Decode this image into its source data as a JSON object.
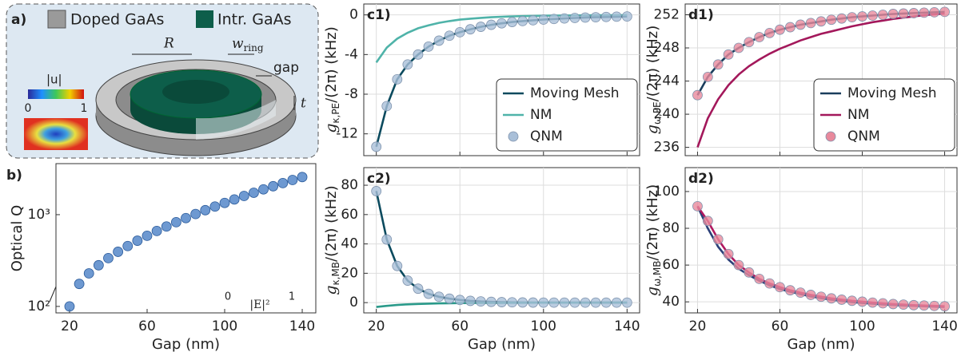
{
  "schematic": {
    "label": "a)",
    "legend": [
      "Doped GaAs",
      "Intr. GaAs"
    ],
    "R": "R",
    "w_ring": [
      "w",
      "ring"
    ],
    "gap": "gap",
    "t": "t",
    "colorbar_title": "|u|",
    "colorbar_ticks": [
      "0",
      "1"
    ]
  },
  "chart_data": [
    {
      "type": "scatter",
      "label": "b)",
      "ylabel": [
        "Optical Q"
      ],
      "xlabel": "Gap (nm)",
      "yscale": "log",
      "grid": false,
      "x": [
        20,
        25,
        30,
        35,
        40,
        45,
        50,
        55,
        60,
        65,
        70,
        75,
        80,
        85,
        90,
        95,
        100,
        105,
        110,
        115,
        120,
        125,
        130,
        135,
        140
      ],
      "series": [
        {
          "name": "Optical Q",
          "color": "#4a7fc6",
          "style": "markers",
          "values": [
            100,
            176,
            229,
            281,
            336,
            394,
            455,
            520,
            589,
            664,
            743,
            828,
            918,
            1016,
            1119,
            1227,
            1343,
            1466,
            1600,
            1734,
            1888,
            2042,
            2208,
            2388,
            2570
          ]
        }
      ],
      "xlim": [
        13,
        147
      ],
      "xticks": [
        20,
        60,
        100,
        140
      ],
      "ylim": [
        85,
        3600
      ],
      "yticks": [
        {
          "value": 100,
          "label": "10²"
        },
        {
          "value": 1000,
          "label": "10³"
        }
      ],
      "annotations": [
        "0",
        "1",
        "|E|²"
      ]
    },
    {
      "type": "line",
      "label": "c1)",
      "ylabel": [
        "g",
        "κ,PE",
        "/(2π) (kHz)"
      ],
      "grid": true,
      "xticklabels": false,
      "legend": "lower right",
      "x": [
        20,
        25,
        30,
        35,
        40,
        45,
        50,
        55,
        60,
        65,
        70,
        75,
        80,
        85,
        90,
        95,
        100,
        105,
        110,
        115,
        120,
        125,
        130,
        135,
        140
      ],
      "series": [
        {
          "name": "Moving Mesh",
          "color": "#0b4a5e",
          "style": "line",
          "values": [
            -13.3,
            -9.2,
            -6.5,
            -5.0,
            -4.0,
            -3.2,
            -2.6,
            -2.1,
            -1.75,
            -1.45,
            -1.2,
            -1.0,
            -0.85,
            -0.72,
            -0.62,
            -0.54,
            -0.47,
            -0.41,
            -0.36,
            -0.31,
            -0.27,
            -0.24,
            -0.21,
            -0.18,
            -0.16
          ]
        },
        {
          "name": "NM",
          "color": "#4fb3a9",
          "style": "line",
          "values": [
            -4.8,
            -3.3,
            -2.4,
            -1.8,
            -1.35,
            -1.05,
            -0.8,
            -0.62,
            -0.48,
            -0.38,
            -0.3,
            -0.24,
            -0.19,
            -0.15,
            -0.12,
            -0.1,
            -0.08,
            -0.07,
            -0.06,
            -0.05,
            -0.04,
            -0.035,
            -0.03,
            -0.025,
            -0.02
          ]
        },
        {
          "name": "QNM",
          "color": "#a9bfd8",
          "style": "markers",
          "values": [
            -13.3,
            -9.2,
            -6.5,
            -5.0,
            -4.0,
            -3.2,
            -2.6,
            -2.1,
            -1.75,
            -1.45,
            -1.2,
            -1.0,
            -0.85,
            -0.72,
            -0.62,
            -0.54,
            -0.47,
            -0.41,
            -0.36,
            -0.31,
            -0.27,
            -0.24,
            -0.21,
            -0.18,
            -0.16
          ]
        }
      ],
      "xlim": [
        14,
        146
      ],
      "xticks": [
        20,
        60,
        100,
        140
      ],
      "ylim": [
        -14.2,
        1.1
      ],
      "yticks": [
        -12,
        -8,
        -4,
        0
      ]
    },
    {
      "type": "line",
      "label": "c2)",
      "ylabel": [
        "g",
        "κ,MB",
        "/(2π) (kHz)"
      ],
      "xlabel": "Gap (nm)",
      "grid": true,
      "x": [
        20,
        25,
        30,
        35,
        40,
        45,
        50,
        55,
        60,
        65,
        70,
        75,
        80,
        85,
        90,
        95,
        100,
        105,
        110,
        115,
        120,
        125,
        130,
        135,
        140
      ],
      "series": [
        {
          "name": "Moving Mesh",
          "color": "#0b4a5e",
          "style": "line",
          "values": [
            76,
            43,
            25,
            15,
            9.5,
            6,
            4,
            2.7,
            1.8,
            1.2,
            0.8,
            0.5,
            0.3,
            0.2,
            0.1,
            0.05,
            0,
            0,
            0,
            0,
            0,
            0,
            0,
            0,
            0
          ]
        },
        {
          "name": "NM",
          "color": "#2a9a8a",
          "style": "line",
          "values": [
            -3,
            -2.2,
            -1.6,
            -1.2,
            -0.9,
            -0.7,
            -0.5,
            -0.4,
            -0.3,
            -0.25,
            -0.2,
            -0.15,
            -0.12,
            -0.1,
            -0.08,
            -0.06,
            -0.05,
            -0.04,
            -0.03,
            -0.03,
            -0.02,
            -0.02,
            -0.01,
            -0.01,
            -0.01
          ]
        },
        {
          "name": "QNM",
          "color": "#a9bfd8",
          "style": "markers",
          "values": [
            76,
            43,
            25,
            15,
            9.5,
            6,
            4,
            2.7,
            1.8,
            1.2,
            0.8,
            0.5,
            0.3,
            0.2,
            0.1,
            0.05,
            0,
            0,
            0,
            0,
            0,
            0,
            0,
            0,
            0
          ]
        }
      ],
      "xlim": [
        14,
        146
      ],
      "xticks": [
        20,
        60,
        100,
        140
      ],
      "ylim": [
        -7,
        92
      ],
      "yticks": [
        0,
        20,
        40,
        60,
        80
      ]
    },
    {
      "type": "line",
      "label": "d1)",
      "ylabel": [
        "g",
        "ω,PE",
        "/(2π) (kHz)"
      ],
      "grid": true,
      "xticklabels": false,
      "legend": "lower right",
      "x": [
        20,
        25,
        30,
        35,
        40,
        45,
        50,
        55,
        60,
        65,
        70,
        75,
        80,
        85,
        90,
        95,
        100,
        105,
        110,
        115,
        120,
        125,
        130,
        135,
        140
      ],
      "series": [
        {
          "name": "Moving Mesh",
          "color": "#1a3d5c",
          "style": "line",
          "values": [
            242.3,
            244.5,
            246,
            247.2,
            248,
            248.7,
            249.3,
            249.8,
            250.2,
            250.5,
            250.8,
            251.0,
            251.2,
            251.4,
            251.55,
            251.7,
            251.8,
            251.9,
            252.0,
            252.1,
            252.15,
            252.2,
            252.25,
            252.3,
            252.35
          ]
        },
        {
          "name": "NM",
          "color": "#a3185b",
          "style": "line",
          "values": [
            236,
            239.5,
            241.8,
            243.5,
            244.8,
            245.8,
            246.6,
            247.3,
            247.9,
            248.4,
            248.9,
            249.3,
            249.7,
            250.0,
            250.3,
            250.6,
            250.85,
            251.1,
            251.3,
            251.5,
            251.65,
            251.8,
            251.95,
            252.05,
            252.15
          ]
        },
        {
          "name": "QNM",
          "color": "#e8899c",
          "style": "markers",
          "values": [
            242.3,
            244.5,
            246,
            247.2,
            248,
            248.7,
            249.3,
            249.8,
            250.2,
            250.5,
            250.8,
            251.0,
            251.2,
            251.4,
            251.55,
            251.7,
            251.8,
            251.9,
            252.0,
            252.1,
            252.15,
            252.2,
            252.25,
            252.3,
            252.35
          ]
        }
      ],
      "xlim": [
        14,
        146
      ],
      "xticks": [
        20,
        60,
        100,
        140
      ],
      "ylim": [
        235,
        253.3
      ],
      "yticks": [
        236,
        240,
        244,
        248,
        252
      ]
    },
    {
      "type": "line",
      "label": "d2)",
      "ylabel": [
        "g",
        "ω,MB",
        "/(2π) (kHz)"
      ],
      "xlabel": "Gap (nm)",
      "grid": true,
      "x": [
        20,
        25,
        30,
        35,
        40,
        45,
        50,
        55,
        60,
        65,
        70,
        75,
        80,
        85,
        90,
        95,
        100,
        105,
        110,
        115,
        120,
        125,
        130,
        135,
        140
      ],
      "series": [
        {
          "name": "Moving Mesh",
          "color": "#2b3f78",
          "style": "line",
          "values": [
            92,
            80,
            70,
            63,
            58,
            54.5,
            51.5,
            49,
            47,
            45.5,
            44.2,
            43,
            42,
            41.2,
            40.5,
            39.9,
            39.4,
            39,
            38.6,
            38.3,
            38,
            37.8,
            37.6,
            37.4,
            37.2
          ]
        },
        {
          "name": "NM",
          "color": "#b01860",
          "style": "line",
          "values": [
            92,
            84,
            74,
            66,
            60,
            56,
            52.5,
            50,
            48,
            46.3,
            45,
            43.8,
            42.8,
            41.9,
            41.2,
            40.6,
            40.1,
            39.6,
            39.2,
            38.8,
            38.5,
            38.2,
            38.0,
            37.8,
            37.6
          ]
        },
        {
          "name": "QNM",
          "color": "#e8899c",
          "style": "markers",
          "values": [
            92,
            84,
            74,
            66,
            60,
            56,
            52.5,
            50,
            48,
            46.3,
            45,
            43.8,
            42.8,
            41.9,
            41.2,
            40.6,
            40.1,
            39.6,
            39.2,
            38.8,
            38.5,
            38.2,
            38.0,
            37.8,
            37.6
          ]
        }
      ],
      "xlim": [
        14,
        146
      ],
      "xticks": [
        20,
        60,
        100,
        140
      ],
      "ylim": [
        34,
        113
      ],
      "yticks": [
        40,
        60,
        80,
        100
      ]
    }
  ]
}
